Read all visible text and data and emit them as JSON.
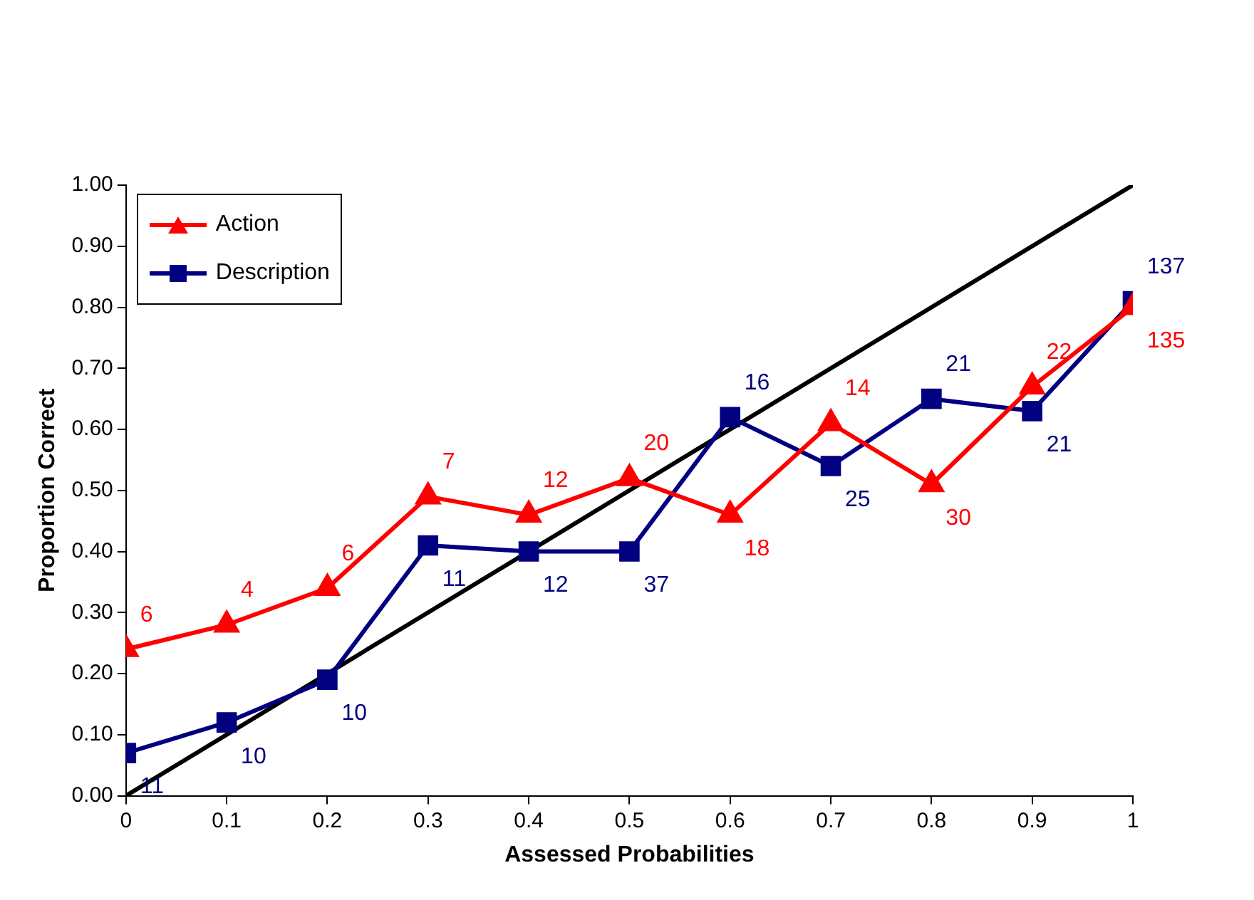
{
  "chart_data": {
    "type": "line",
    "xlabel": "Assessed Probabilities",
    "ylabel": "Proportion Correct",
    "xlim": [
      0,
      1
    ],
    "xticks": [
      0,
      0.1,
      0.2,
      0.3,
      0.4,
      0.5,
      0.6,
      0.7,
      0.8,
      0.9,
      1
    ],
    "ylim": [
      0,
      1
    ],
    "yticks": [
      {
        "value": 0,
        "label": "0.00"
      },
      {
        "value": 0.1,
        "label": "0.10"
      },
      {
        "value": 0.2,
        "label": "0.20"
      },
      {
        "value": 0.3,
        "label": "0.30"
      },
      {
        "value": 0.4,
        "label": "0.40"
      },
      {
        "value": 0.5,
        "label": "0.50"
      },
      {
        "value": 0.6,
        "label": "0.60"
      },
      {
        "value": 0.7,
        "label": "0.70"
      },
      {
        "value": 0.8,
        "label": "0.80"
      },
      {
        "value": 0.9,
        "label": "0.90"
      },
      {
        "value": 1,
        "label": "1.00"
      }
    ],
    "x": [
      0,
      0.1,
      0.2,
      0.3,
      0.4,
      0.5,
      0.6,
      0.7,
      0.8,
      0.9,
      1
    ],
    "series": [
      {
        "name": "Action",
        "color": "#ff0000",
        "marker": "triangle",
        "values": [
          0.24,
          0.28,
          0.34,
          0.49,
          0.46,
          0.52,
          0.46,
          0.61,
          0.51,
          0.67,
          0.8
        ]
      },
      {
        "name": "Description",
        "color": "#000080",
        "marker": "square",
        "values": [
          0.07,
          0.12,
          0.19,
          0.41,
          0.4,
          0.4,
          0.62,
          0.54,
          0.65,
          0.63,
          0.81
        ]
      },
      {
        "color": "#000000",
        "marker": "none",
        "x": [
          0,
          1
        ],
        "values": [
          0,
          1
        ]
      }
    ],
    "annotations": [
      {
        "text": "6",
        "x": 0,
        "y": 0.24
      },
      {
        "text": "4",
        "x": 0.1,
        "y": 0.28
      },
      {
        "text": "6",
        "x": 0.2,
        "y": 0.34
      },
      {
        "text": "7",
        "x": 0.3,
        "y": 0.49
      },
      {
        "text": "12",
        "x": 0.4,
        "y": 0.46
      },
      {
        "text": "20",
        "x": 0.5,
        "y": 0.52
      },
      {
        "text": "18",
        "x": 0.6,
        "y": 0.46
      },
      {
        "text": "14",
        "x": 0.7,
        "y": 0.61
      },
      {
        "text": "30",
        "x": 0.8,
        "y": 0.51
      },
      {
        "text": "22",
        "x": 0.9,
        "y": 0.67
      },
      {
        "text": "135",
        "x": 1,
        "y": 0.8
      },
      {
        "text": "11",
        "x": 0,
        "y": 0.07
      },
      {
        "text": "10",
        "x": 0.1,
        "y": 0.12
      },
      {
        "text": "10",
        "x": 0.2,
        "y": 0.19
      },
      {
        "text": "11",
        "x": 0.3,
        "y": 0.41
      },
      {
        "text": "12",
        "x": 0.4,
        "y": 0.4
      },
      {
        "text": "37",
        "x": 0.5,
        "y": 0.4
      },
      {
        "text": "16",
        "x": 0.6,
        "y": 0.62
      },
      {
        "text": "25",
        "x": 0.7,
        "y": 0.54
      },
      {
        "text": "21",
        "x": 0.8,
        "y": 0.65
      },
      {
        "text": "21",
        "x": 0.9,
        "y": 0.63
      },
      {
        "text": "137",
        "x": 1,
        "y": 0.81
      }
    ],
    "grid": false,
    "legend": "top left"
  }
}
